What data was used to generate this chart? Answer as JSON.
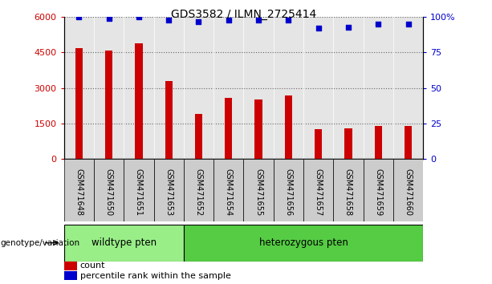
{
  "title": "GDS3582 / ILMN_2725414",
  "categories": [
    "GSM471648",
    "GSM471650",
    "GSM471651",
    "GSM471653",
    "GSM471652",
    "GSM471654",
    "GSM471655",
    "GSM471656",
    "GSM471657",
    "GSM471658",
    "GSM471659",
    "GSM471660"
  ],
  "bar_values": [
    4700,
    4600,
    4900,
    3300,
    1900,
    2600,
    2500,
    2700,
    1250,
    1300,
    1400,
    1400
  ],
  "percentile_values": [
    100,
    99,
    100,
    98,
    97,
    98,
    98,
    98,
    92,
    93,
    95,
    95
  ],
  "bar_color": "#cc0000",
  "dot_color": "#0000cc",
  "ylim_left": [
    0,
    6000
  ],
  "ylim_right": [
    0,
    100
  ],
  "yticks_left": [
    0,
    1500,
    3000,
    4500,
    6000
  ],
  "ytick_labels_left": [
    "0",
    "1500",
    "3000",
    "4500",
    "6000"
  ],
  "yticks_right": [
    0,
    25,
    50,
    75,
    100
  ],
  "ytick_labels_right": [
    "0",
    "25",
    "50",
    "75",
    "100%"
  ],
  "wildtype_count": 4,
  "heterozygous_count": 8,
  "wildtype_label": "wildtype pten",
  "heterozygous_label": "heterozygous pten",
  "wildtype_color": "#99ee88",
  "heterozygous_color": "#55cc44",
  "genotype_label": "genotype/variation",
  "legend_count_label": "count",
  "legend_percentile_label": "percentile rank within the sample",
  "bar_width": 0.25,
  "background_color": "#ffffff",
  "plot_bg_color": "#ffffff",
  "col_bg_color": "#cccccc",
  "grid_color": "#000000",
  "tick_label_color_left": "#cc0000",
  "tick_label_color_right": "#0000cc",
  "col_bg_alpha": 0.5
}
